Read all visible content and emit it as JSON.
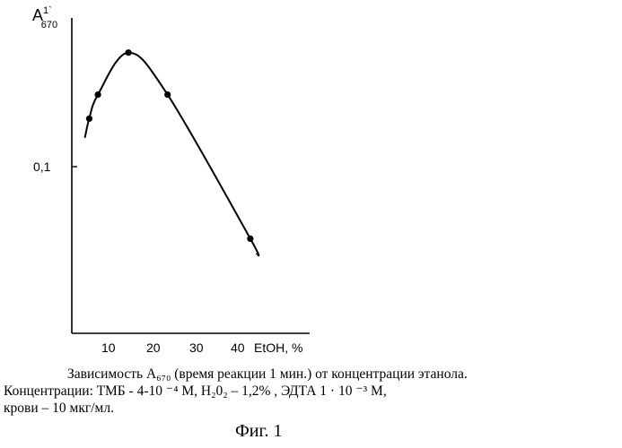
{
  "chart_data": {
    "type": "line",
    "ylabel_main": "A",
    "ylabel_sup": "1`",
    "ylabel_sub": "670",
    "xlabel": "EtOH, %",
    "x_ticks": [
      10,
      20,
      30,
      40
    ],
    "x_tick_labels": [
      "10",
      "20",
      "30",
      "40"
    ],
    "y_tick_labels": [
      "0,1"
    ],
    "xlim": [
      2,
      45
    ],
    "points": [
      {
        "x": 4.0,
        "y": 0.14
      },
      {
        "x": 6.0,
        "y": 0.16
      },
      {
        "x": 13.0,
        "y": 0.195
      },
      {
        "x": 22.0,
        "y": 0.16
      },
      {
        "x": 41.0,
        "y": 0.04
      }
    ],
    "curve_start": {
      "x": 3.0,
      "y": 0.124
    },
    "curve_end": {
      "x": 42.5,
      "y": 0.027
    },
    "grid": false,
    "legend": "none"
  },
  "caption": {
    "line1": "Зависимость A₆₇₀ (время реакции 1 мин.) от концентрации этанола.",
    "line2": "Концентрации:  ТМБ  -  4-10  ⁻⁴  М,  H₂0₂  –  1,2% ,  ЭДТА  1  ·  10  ⁻³  М,",
    "line3": "крови – 10 мкг/мл."
  },
  "figure_label": "Фиг. 1"
}
